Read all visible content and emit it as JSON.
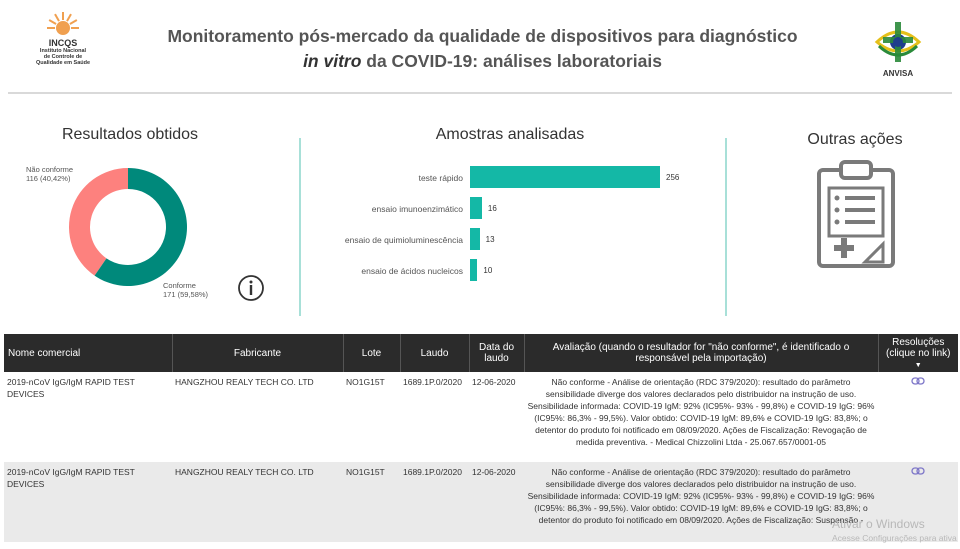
{
  "header": {
    "incqs_name": "INCQS",
    "incqs_sub": [
      "Instituto Nacional",
      "de Controle de",
      "Qualidade em Saúde"
    ],
    "title_line1": "Monitoramento pós-mercado da qualidade de dispositivos para diagnóstico",
    "title_line2_em": "in vitro",
    "title_line2_rest": " da COVID-19: análises laboratoriais",
    "anvisa_name": "ANVISA"
  },
  "panels": {
    "resultados_title": "Resultados obtidos",
    "amostras_title": "Amostras analisadas",
    "outras_title": "Outras ações"
  },
  "chart_data": [
    {
      "type": "pie",
      "title": "Resultados obtidos",
      "categories": [
        "Não conforme",
        "Conforme"
      ],
      "values": [
        116,
        171
      ],
      "data_labels": [
        "116 (40,42%)",
        "171 (59,58%)"
      ],
      "colors": [
        "#fd817e",
        "#00897b"
      ]
    },
    {
      "type": "bar",
      "orientation": "horizontal",
      "title": "Amostras analisadas",
      "categories": [
        "teste rápido",
        "ensaio imunoenzimático",
        "ensaio de quimioluminescência",
        "ensaio de ácidos nucleicos"
      ],
      "values": [
        256,
        16,
        13,
        10
      ],
      "xlim": [
        0,
        256
      ],
      "color": "#14b8a6"
    }
  ],
  "table": {
    "headers": [
      "Nome comercial",
      "Fabricante",
      "Lote",
      "Laudo",
      "Data do laudo",
      "Avaliação (quando o resultador for \"não conforme\", é identificado o responsável pela importação)",
      "Resoluções (clique no link)"
    ],
    "rows": [
      {
        "nome": "2019-nCoV IgG/IgM RAPID TEST DEVICES",
        "fabricante": "HANGZHOU REALY TECH CO. LTD",
        "lote": "NO1G15T",
        "laudo": "1689.1P.0/2020",
        "data": "12-06-2020",
        "avaliacao": "Não conforme - Análise de orientação (RDC 379/2020): resultado do parâmetro sensibilidade diverge dos valores declarados pelo distribuidor na instrução de uso. Sensibilidade informada: COVID-19 IgM: 92% (IC95%- 93% - 99,8%) e COVID-19 IgG: 96% (IC95%: 86,3% - 99,5%). Valor obtido: COVID-19 IgM: 89,6% e COVID-19 IgG: 83,8%; o detentor do produto foi notificado em 08/09/2020. Ações de Fiscalização: Revogação de medida preventiva. - Medical Chizzolini Ltda - 25.067.657/0001-05"
      },
      {
        "nome": "2019-nCoV IgG/IgM RAPID TEST DEVICES",
        "fabricante": "HANGZHOU REALY TECH CO. LTD",
        "lote": "NO1G15T",
        "laudo": "1689.1P.0/2020",
        "data": "12-06-2020",
        "avaliacao": "Não conforme - Análise de orientação (RDC 379/2020): resultado do parâmetro sensibilidade diverge dos valores declarados pelo distribuidor na instrução de uso. Sensibilidade informada: COVID-19 IgM: 92% (IC95%- 93% - 99,8%) e COVID-19 IgG: 96% (IC95%: 86,3% - 99,5%). Valor obtido: COVID-19 IgM: 89,6% e COVID-19 IgG: 83,8%; o detentor do produto foi notificado em 08/09/2020. Ações de Fiscalização: Suspensão -"
      }
    ]
  },
  "watermark": {
    "line1": "Ativar o Windows",
    "line2": "Acesse Configurações para ativa"
  }
}
